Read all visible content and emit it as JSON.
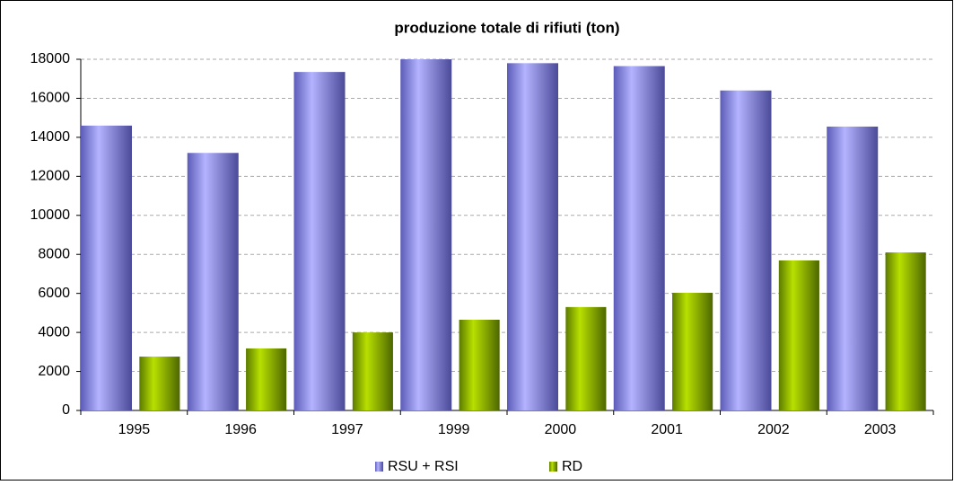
{
  "chart_data": {
    "type": "bar",
    "title": "produzione totale di rifiuti (ton)",
    "categories": [
      "1995",
      "1996",
      "1997",
      "1999",
      "2000",
      "2001",
      "2002",
      "2003"
    ],
    "series": [
      {
        "name": "RSU + RSI",
        "color": "#9999ff",
        "values": [
          14600,
          13200,
          17350,
          18000,
          17800,
          17650,
          16400,
          14550
        ]
      },
      {
        "name": "RD",
        "color": "#99cc00",
        "values": [
          2760,
          3180,
          4000,
          4650,
          5300,
          6030,
          7690,
          8100
        ]
      }
    ],
    "ylim": [
      0,
      18000
    ],
    "yticks": [
      0,
      2000,
      4000,
      6000,
      8000,
      10000,
      12000,
      14000,
      16000,
      18000
    ],
    "grid": true,
    "legend": "bottom"
  }
}
